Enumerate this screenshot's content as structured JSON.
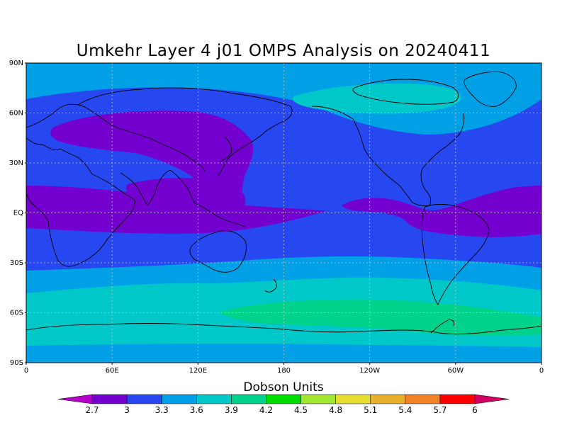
{
  "map": {
    "title": "Umkehr Layer 4 j01 OMPS Analysis on 20240411",
    "units_label": "Dobson Units",
    "lat_ticks": [
      "90N",
      "60N",
      "30N",
      "EQ",
      "30S",
      "60S",
      "90S"
    ],
    "lon_ticks": [
      "0",
      "60E",
      "120E",
      "180",
      "120W",
      "60W",
      "0"
    ],
    "colors": {
      "lt_2_7": "#b400c8",
      "c2_7_3_0": "#7400d0",
      "c3_0_3_3": "#2748f0",
      "c3_3_3_6": "#00a0e6",
      "c3_6_3_9": "#00c8c8",
      "c3_9_4_2": "#00d28c",
      "c4_2_4_5": "#00dc00",
      "c4_5_4_8": "#a0e632",
      "c4_8_5_1": "#e6dc32",
      "c5_1_5_4": "#e6af2d",
      "c5_4_5_7": "#f08228",
      "c5_7_6_0": "#fa0000",
      "gt_6": "#d20064"
    }
  },
  "legend": {
    "labels": [
      "2.7",
      "3",
      "3.3",
      "3.6",
      "3.9",
      "4.2",
      "4.5",
      "4.8",
      "5.1",
      "5.4",
      "5.7",
      "6"
    ],
    "colors": [
      "#7400d0",
      "#2748f0",
      "#00a0e6",
      "#00c8c8",
      "#00d28c",
      "#00dc00",
      "#a0e632",
      "#e6dc32",
      "#e6af2d",
      "#f08228",
      "#fa0000"
    ]
  }
}
